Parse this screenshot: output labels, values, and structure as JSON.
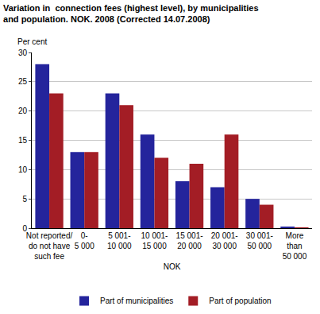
{
  "chart_data": {
    "type": "bar",
    "title": "Variation in  connection fees (highest level), by municipalities\nand population. NOK. 2008 (Corrected 14.07.2008)",
    "y_label": "Per cent",
    "x_label": "NOK",
    "categories": [
      "Not reported/\ndo not have\nsuch fee",
      "0-\n5 000",
      "5 001-\n10 000",
      "10 001-\n15 000",
      "15 001-\n20 000",
      "20 001-\n30 000",
      "30 001-\n50 000",
      "More\nthan\n50 000"
    ],
    "series": [
      {
        "name": "Part of municipalities",
        "color": "#24249c",
        "values": [
          28,
          13,
          23,
          16,
          8,
          7,
          5,
          0.2
        ]
      },
      {
        "name": "Part of population",
        "color": "#a31d25",
        "values": [
          23,
          13,
          21,
          12,
          11,
          16,
          4,
          0.1
        ]
      }
    ],
    "ylim": [
      0,
      30
    ],
    "yticks": [
      0,
      5,
      10,
      15,
      20,
      25,
      30
    ],
    "grid": true,
    "legend": "bottom"
  }
}
